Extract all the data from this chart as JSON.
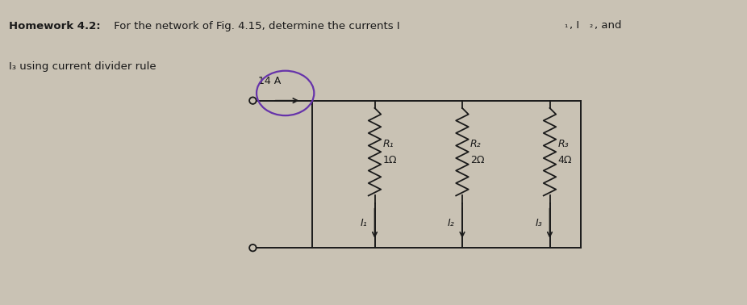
{
  "bg_color": "#c9c2b4",
  "text_color": "#1a1a1a",
  "line_color": "#1a1a1a",
  "resistor_color": "#1a1a1a",
  "circle_color": "#6633aa",
  "circle_linewidth": 1.6,
  "title_bold": "Homework 4.2:",
  "title_rest": " For the network of Fig. 4.15, determine the currents I",
  "title_subscripts": "₁, I₂, and",
  "title_line2": "I₃ using current divider rule",
  "current_source_value": "14 A",
  "R1_label": "R₁",
  "R1_value": "1Ω",
  "R2_label": "R₂",
  "R2_value": "2Ω",
  "R3_label": "R₃",
  "R3_value": "4Ω",
  "I1_label": "I₁",
  "I2_label": "I₂",
  "I3_label": "I₃"
}
